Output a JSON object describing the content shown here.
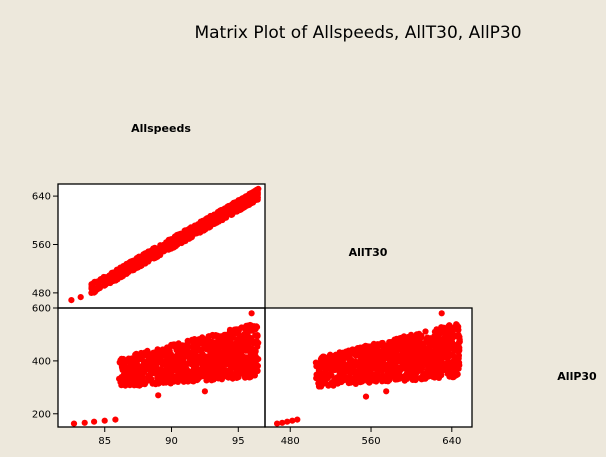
{
  "chart_data": {
    "type": "scatter",
    "subtype": "matrix-plot-lower-triangle",
    "title": "Matrix Plot of Allspeeds, AllT30, AllP30",
    "variables": [
      "Allspeeds",
      "AllT30",
      "AllP30"
    ],
    "marker_color": "#ff0000",
    "background_color": "#ede8dc",
    "panel_background": "#ffffff",
    "grid": false,
    "axes": {
      "Allspeeds": {
        "range": [
          81.5,
          97
        ],
        "ticks": [
          85,
          90,
          95
        ]
      },
      "AllT30": {
        "range": [
          455,
          660
        ],
        "ticks": [
          480,
          560,
          640
        ]
      },
      "AllP30": {
        "range": [
          150,
          600
        ],
        "ticks": [
          200,
          400,
          600
        ]
      }
    },
    "panels": [
      {
        "x": "Allspeeds",
        "y": "AllT30",
        "point_cloud": {
          "description": "dense increasing band",
          "x_min": 82.5,
          "x_max": 96.5,
          "y_at_x_min": 468,
          "y_at_x_max": 643,
          "band_half_width": 9
        },
        "outliers": [
          [
            82.5,
            468
          ],
          [
            83.2,
            473
          ],
          [
            84.0,
            480
          ]
        ]
      },
      {
        "x": "Allspeeds",
        "y": "AllP30",
        "point_cloud": {
          "description": "dense blob widening upward",
          "x_min": 86,
          "x_max": 96.5,
          "y_min": 300,
          "y_max": 545,
          "top_plateau": 545
        },
        "outliers": [
          [
            82.7,
            163
          ],
          [
            83.5,
            166
          ],
          [
            84.2,
            170
          ],
          [
            85.0,
            174
          ],
          [
            85.8,
            178
          ],
          [
            89,
            270
          ],
          [
            92.5,
            285
          ],
          [
            96,
            580
          ]
        ]
      },
      {
        "x": "AllT30",
        "y": "AllP30",
        "point_cloud": {
          "description": "dense blob widening upward",
          "x_min": 505,
          "x_max": 648,
          "y_min": 300,
          "y_max": 545,
          "top_plateau": 545
        },
        "outliers": [
          [
            467,
            163
          ],
          [
            472,
            166
          ],
          [
            477,
            170
          ],
          [
            482,
            174
          ],
          [
            487,
            178
          ],
          [
            555,
            265
          ],
          [
            575,
            285
          ],
          [
            630,
            580
          ]
        ]
      }
    ]
  }
}
